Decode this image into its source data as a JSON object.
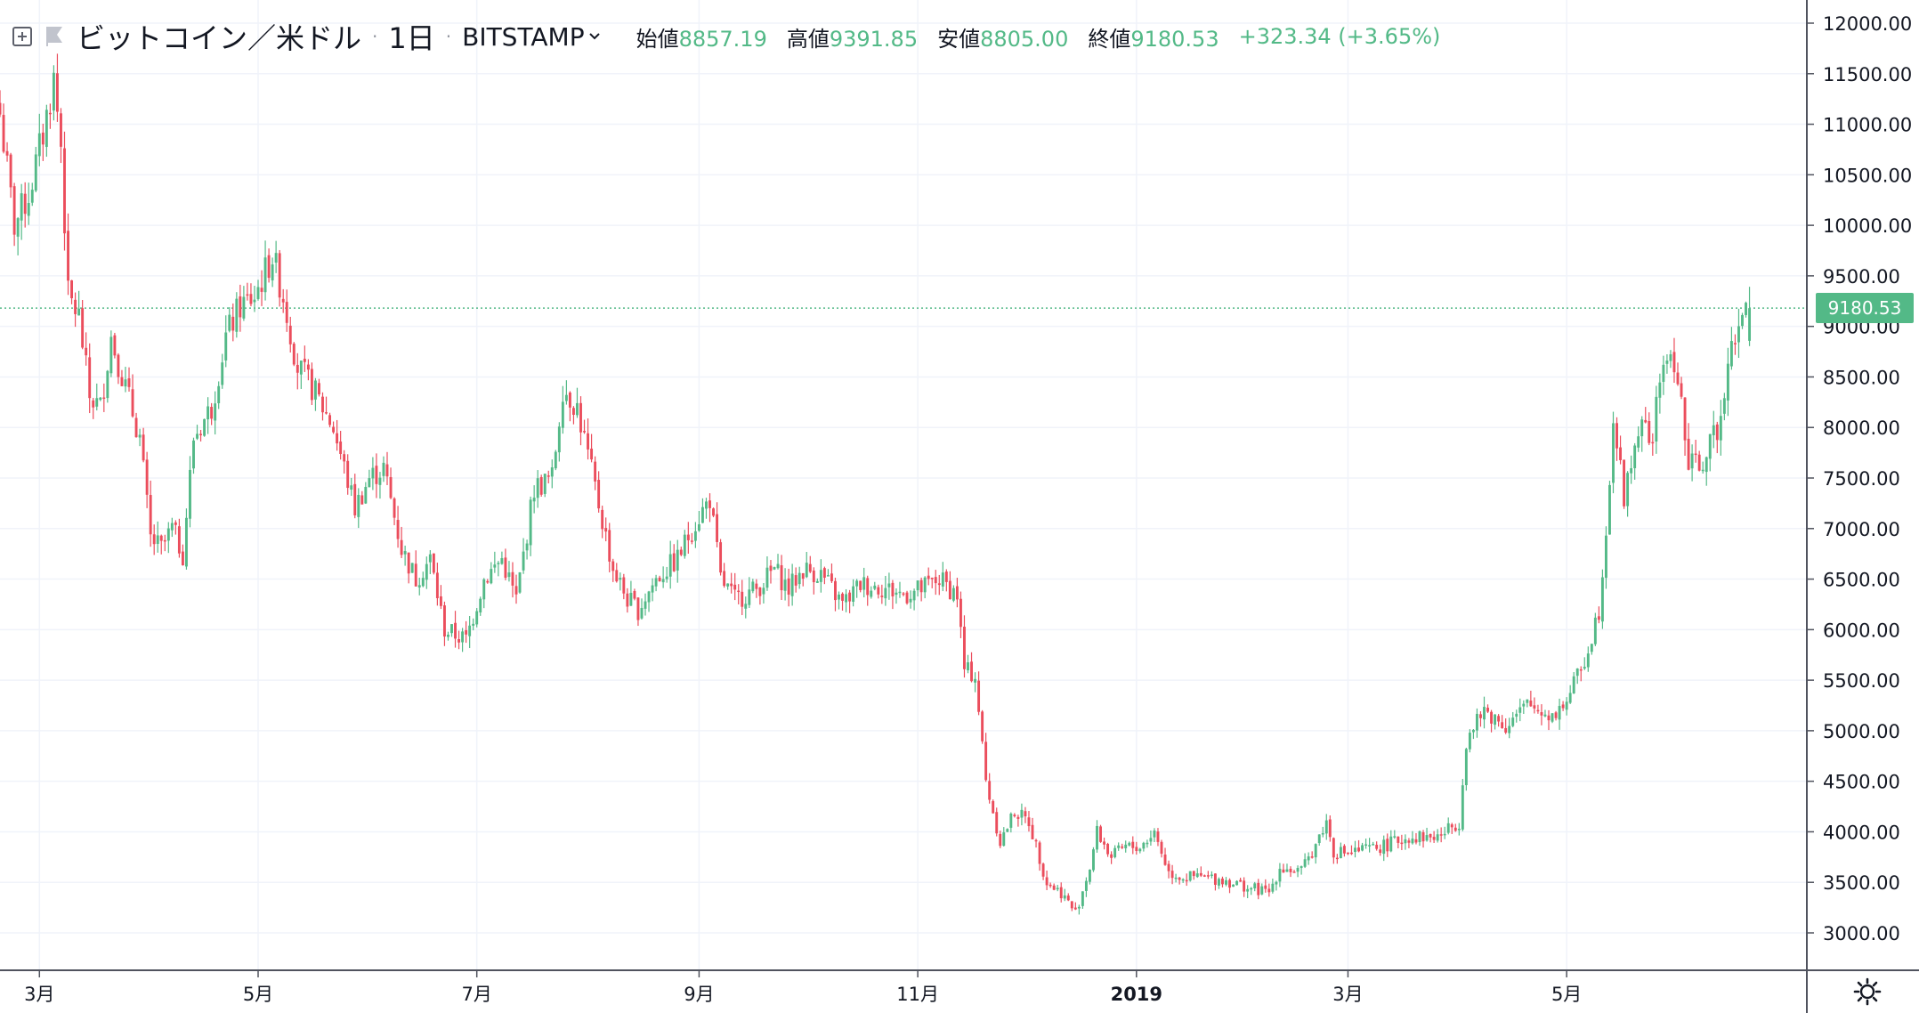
{
  "header": {
    "symbol": "ビットコイン／米ドル",
    "resolution": "1日",
    "exchange": "BITSTAMP",
    "open_label": "始値",
    "open_value": "8857.19",
    "high_label": "高値",
    "high_value": "9391.85",
    "low_label": "安値",
    "low_value": "8805.00",
    "close_label": "終値",
    "close_value": "9180.53",
    "change": "+323.34 (+3.65%)"
  },
  "last_price_badge": "9180.53",
  "colors": {
    "up": "#53b987",
    "down": "#eb4d5c",
    "grid": "#f0f3fa",
    "axis_text": "#131722",
    "price_line": "#53b987"
  },
  "icons": [
    "expand-icon",
    "flag-icon",
    "chevron-down-icon",
    "settings-icon"
  ],
  "chart_data": {
    "type": "candlestick",
    "title": "ビットコイン／米ドル, 1日, BITSTAMP",
    "ylim": [
      2600,
      12300
    ],
    "y_ticks": [
      3000,
      3500,
      4000,
      4500,
      5000,
      5500,
      6000,
      6500,
      7000,
      7500,
      8000,
      8500,
      9000,
      9500,
      10000,
      10500,
      11000,
      11500,
      12000
    ],
    "y_tick_labels": [
      "3000.00",
      "3500.00",
      "4000.00",
      "4500.00",
      "5000.00",
      "5500.00",
      "6000.00",
      "6500.00",
      "7000.00",
      "7500.00",
      "8000.00",
      "8500.00",
      "9000.00",
      "9500.00",
      "10000.00",
      "10500.00",
      "11000.00",
      "11500.00",
      "12000.00"
    ],
    "x_range": [
      "2018-02-18",
      "2019-07-07"
    ],
    "x_ticks": [
      {
        "date": "2018-03-01",
        "label": "3月"
      },
      {
        "date": "2018-05-01",
        "label": "5月"
      },
      {
        "date": "2018-07-01",
        "label": "7月"
      },
      {
        "date": "2018-09-01",
        "label": "9月"
      },
      {
        "date": "2018-11-01",
        "label": "11月"
      },
      {
        "date": "2019-01-01",
        "label": "2019"
      },
      {
        "date": "2019-03-01",
        "label": "3月"
      },
      {
        "date": "2019-05-01",
        "label": "5月"
      }
    ],
    "last_price": 9180.53,
    "close_series": {
      "start": "2018-02-18",
      "end": "2019-06-21",
      "anchors": [
        [
          "2018-02-18",
          11100
        ],
        [
          "2018-02-22",
          10000
        ],
        [
          "2018-02-26",
          10300
        ],
        [
          "2018-03-02",
          10900
        ],
        [
          "2018-03-05",
          11450
        ],
        [
          "2018-03-07",
          10800
        ],
        [
          "2018-03-09",
          9300
        ],
        [
          "2018-03-12",
          9100
        ],
        [
          "2018-03-15",
          8300
        ],
        [
          "2018-03-18",
          8200
        ],
        [
          "2018-03-21",
          8900
        ],
        [
          "2018-03-25",
          8400
        ],
        [
          "2018-03-29",
          7900
        ],
        [
          "2018-04-01",
          6900
        ],
        [
          "2018-04-04",
          6800
        ],
        [
          "2018-04-07",
          7000
        ],
        [
          "2018-04-10",
          6750
        ],
        [
          "2018-04-13",
          7900
        ],
        [
          "2018-04-18",
          8200
        ],
        [
          "2018-04-22",
          8900
        ],
        [
          "2018-04-26",
          9200
        ],
        [
          "2018-04-30",
          9300
        ],
        [
          "2018-05-05",
          9700
        ],
        [
          "2018-05-08",
          9300
        ],
        [
          "2018-05-12",
          8600
        ],
        [
          "2018-05-16",
          8400
        ],
        [
          "2018-05-22",
          8000
        ],
        [
          "2018-05-28",
          7200
        ],
        [
          "2018-06-01",
          7500
        ],
        [
          "2018-06-05",
          7600
        ],
        [
          "2018-06-10",
          6800
        ],
        [
          "2018-06-14",
          6500
        ],
        [
          "2018-06-18",
          6700
        ],
        [
          "2018-06-22",
          6000
        ],
        [
          "2018-06-28",
          5900
        ],
        [
          "2018-07-03",
          6500
        ],
        [
          "2018-07-08",
          6700
        ],
        [
          "2018-07-12",
          6300
        ],
        [
          "2018-07-17",
          7400
        ],
        [
          "2018-07-22",
          7500
        ],
        [
          "2018-07-25",
          8400
        ],
        [
          "2018-07-29",
          8200
        ],
        [
          "2018-08-03",
          7400
        ],
        [
          "2018-08-08",
          6600
        ],
        [
          "2018-08-12",
          6300
        ],
        [
          "2018-08-15",
          6200
        ],
        [
          "2018-08-20",
          6500
        ],
        [
          "2018-08-26",
          6700
        ],
        [
          "2018-08-30",
          7000
        ],
        [
          "2018-09-04",
          7300
        ],
        [
          "2018-09-07",
          6500
        ],
        [
          "2018-09-11",
          6300
        ],
        [
          "2018-09-17",
          6400
        ],
        [
          "2018-09-22",
          6600
        ],
        [
          "2018-09-26",
          6400
        ],
        [
          "2018-09-30",
          6600
        ],
        [
          "2018-10-05",
          6550
        ],
        [
          "2018-10-11",
          6250
        ],
        [
          "2018-10-16",
          6450
        ],
        [
          "2018-10-22",
          6420
        ],
        [
          "2018-10-28",
          6350
        ],
        [
          "2018-11-02",
          6400
        ],
        [
          "2018-11-07",
          6500
        ],
        [
          "2018-11-12",
          6350
        ],
        [
          "2018-11-14",
          5600
        ],
        [
          "2018-11-17",
          5550
        ],
        [
          "2018-11-20",
          4500
        ],
        [
          "2018-11-24",
          3900
        ],
        [
          "2018-11-28",
          4200
        ],
        [
          "2018-12-02",
          4100
        ],
        [
          "2018-12-07",
          3500
        ],
        [
          "2018-12-11",
          3400
        ],
        [
          "2018-12-15",
          3200
        ],
        [
          "2018-12-19",
          3650
        ],
        [
          "2018-12-21",
          4000
        ],
        [
          "2018-12-25",
          3750
        ],
        [
          "2018-12-29",
          3850
        ],
        [
          "2019-01-02",
          3850
        ],
        [
          "2019-01-06",
          4000
        ],
        [
          "2019-01-10",
          3600
        ],
        [
          "2019-01-14",
          3550
        ],
        [
          "2019-01-20",
          3550
        ],
        [
          "2019-01-26",
          3520
        ],
        [
          "2019-02-01",
          3450
        ],
        [
          "2019-02-07",
          3400
        ],
        [
          "2019-02-10",
          3650
        ],
        [
          "2019-02-16",
          3600
        ],
        [
          "2019-02-23",
          4100
        ],
        [
          "2019-02-25",
          3800
        ],
        [
          "2019-03-02",
          3800
        ],
        [
          "2019-03-10",
          3850
        ],
        [
          "2019-03-18",
          3950
        ],
        [
          "2019-03-26",
          3950
        ],
        [
          "2019-04-01",
          4100
        ],
        [
          "2019-04-03",
          4900
        ],
        [
          "2019-04-08",
          5200
        ],
        [
          "2019-04-14",
          5050
        ],
        [
          "2019-04-20",
          5250
        ],
        [
          "2019-04-27",
          5150
        ],
        [
          "2019-05-01",
          5300
        ],
        [
          "2019-05-06",
          5700
        ],
        [
          "2019-05-10",
          6200
        ],
        [
          "2019-05-12",
          7000
        ],
        [
          "2019-05-14",
          8100
        ],
        [
          "2019-05-17",
          7300
        ],
        [
          "2019-05-21",
          8000
        ],
        [
          "2019-05-25",
          7900
        ],
        [
          "2019-05-28",
          8700
        ],
        [
          "2019-06-01",
          8550
        ],
        [
          "2019-06-04",
          7600
        ],
        [
          "2019-06-09",
          7700
        ],
        [
          "2019-06-13",
          8100
        ],
        [
          "2019-06-15",
          8750
        ],
        [
          "2019-06-18",
          9050
        ],
        [
          "2019-06-21",
          9180.53
        ]
      ]
    }
  }
}
